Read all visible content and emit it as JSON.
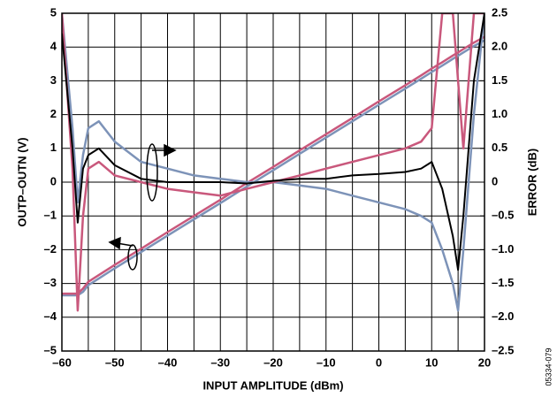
{
  "chart_data": {
    "type": "line",
    "xlabel": "INPUT AMPLITUDE (dBm)",
    "ylabel": "OUTP–OUTN (V)",
    "y2label": "ERROR (dB)",
    "figure_id": "05334-079",
    "xlim": [
      -60,
      20
    ],
    "xticks": [
      {
        "value": -60,
        "label": "–60"
      },
      {
        "value": -50,
        "label": "–50"
      },
      {
        "value": -40,
        "label": "–40"
      },
      {
        "value": -30,
        "label": "–30"
      },
      {
        "value": -20,
        "label": "–20"
      },
      {
        "value": -10,
        "label": "–10"
      },
      0,
      10,
      20
    ],
    "xgrid_minor": [
      -55,
      -45,
      -35,
      -25,
      -15,
      -5,
      5,
      15
    ],
    "ylim": [
      -5,
      5
    ],
    "yticks": [
      {
        "value": -5,
        "label": "–5"
      },
      {
        "value": -4,
        "label": "–4"
      },
      {
        "value": -3,
        "label": "–3"
      },
      {
        "value": -2,
        "label": "–2"
      },
      {
        "value": -1,
        "label": "–1"
      },
      0,
      1,
      2,
      3,
      4,
      5
    ],
    "y2lim": [
      -2.5,
      2.5
    ],
    "y2ticks": [
      {
        "value": -2.5,
        "label": "–2.5"
      },
      {
        "value": -2,
        "label": "–2.0"
      },
      {
        "value": -1.5,
        "label": "–1.5"
      },
      {
        "value": -1,
        "label": "–1.0"
      },
      {
        "value": -0.5,
        "label": "–0.5"
      },
      0,
      0.5,
      {
        "value": 1,
        "label": "1.0"
      },
      1.5,
      {
        "value": 2,
        "label": "2.0"
      },
      2.5
    ],
    "grid": true,
    "x": [
      -60,
      -58,
      -57,
      -56,
      -55,
      -53,
      -50,
      -45,
      -40,
      -35,
      -30,
      -25,
      -20,
      -15,
      -10,
      -5,
      0,
      5,
      8,
      10,
      12,
      14,
      15,
      16,
      18,
      20
    ],
    "series": [
      {
        "color": "#7d93b8",
        "axis": "y",
        "values": [
          -3.35,
          -3.35,
          -3.35,
          -3.25,
          -3.05,
          -2.85,
          -2.55,
          -2.07,
          -1.58,
          -1.1,
          -0.62,
          -0.13,
          0.35,
          0.84,
          1.32,
          1.8,
          2.29,
          2.77,
          3.06,
          3.26,
          3.45,
          3.65,
          3.74,
          3.84,
          4.03,
          4.2
        ]
      },
      {
        "color": "#c9587c",
        "axis": "y",
        "values": [
          -3.3,
          -3.3,
          -3.3,
          -3.15,
          -2.95,
          -2.75,
          -2.45,
          -1.97,
          -1.48,
          -1.0,
          -0.52,
          -0.03,
          0.45,
          0.94,
          1.42,
          1.9,
          2.39,
          2.87,
          3.16,
          3.36,
          3.55,
          3.75,
          3.84,
          3.94,
          4.13,
          4.3
        ]
      },
      {
        "color": "#7d93b8",
        "axis": "y2",
        "values": [
          2.5,
          0.8,
          -0.3,
          0.4,
          0.8,
          0.9,
          0.6,
          0.3,
          0.2,
          0.1,
          0.05,
          0,
          0,
          -0.05,
          -0.1,
          -0.2,
          -0.3,
          -0.4,
          -0.5,
          -0.6,
          -1.0,
          -1.5,
          -1.9,
          -1.0,
          1.0,
          2.5
        ]
      },
      {
        "color": "#c9587c",
        "axis": "y2",
        "values": [
          2.5,
          0.2,
          -1.9,
          -0.5,
          0.2,
          0.3,
          0.1,
          0,
          -0.1,
          -0.15,
          -0.2,
          -0.1,
          0,
          0.1,
          0.2,
          0.3,
          0.4,
          0.5,
          0.6,
          0.8,
          2.5,
          2.5,
          1.5,
          0.5,
          2.5,
          2.5
        ]
      },
      {
        "color": "#000000",
        "axis": "y2",
        "values": [
          2.2,
          0.5,
          -0.6,
          0.2,
          0.4,
          0.5,
          0.25,
          0.05,
          0,
          0,
          0,
          -0.02,
          0.02,
          0.05,
          0.05,
          0.1,
          0.12,
          0.15,
          0.2,
          0.3,
          -0.1,
          -0.8,
          -1.3,
          -0.5,
          1.5,
          2.5
        ]
      }
    ]
  }
}
